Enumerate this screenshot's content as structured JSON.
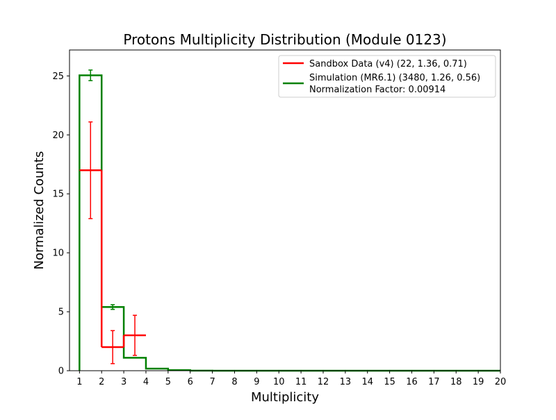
{
  "chart_data": {
    "type": "histogram",
    "title": "Protons Multiplicity Distribution (Module 0123)",
    "xlabel": "Multiplicity",
    "ylabel": "Normalized Counts",
    "xlim": [
      0.55,
      20
    ],
    "ylim": [
      0,
      27.2
    ],
    "xticks": [
      1,
      2,
      3,
      4,
      5,
      6,
      7,
      8,
      9,
      10,
      11,
      12,
      13,
      14,
      15,
      16,
      17,
      18,
      19,
      20
    ],
    "yticks": [
      0,
      5,
      10,
      15,
      20,
      25
    ],
    "grid": false,
    "legend_position": "top-right",
    "legend_extra_text": "Normalization Factor: 0.00914",
    "series": [
      {
        "name": "Sandbox Data (v4) (22, 1.36, 0.71)",
        "color": "#ff0000",
        "style": "crosses",
        "x": [
          1.5,
          2.5,
          3.5
        ],
        "y": [
          17.0,
          2.0,
          3.0
        ],
        "xerr": [
          0.5,
          0.5,
          0.5
        ],
        "yerr": [
          4.1,
          1.4,
          1.7
        ]
      },
      {
        "name": "Simulation (MR6.1) (3480, 1.26, 0.56)",
        "color": "#008000",
        "style": "step",
        "x": [
          1.5,
          2.5,
          3.5,
          4.5,
          5.5,
          6.5,
          7.5,
          8.5,
          9.5,
          10.5,
          11.5,
          12.5,
          13.5,
          14.5,
          15.5,
          16.5,
          17.5,
          18.5,
          19.5
        ],
        "y": [
          25.05,
          5.4,
          1.1,
          0.18,
          0.05,
          0.01,
          0,
          0,
          0,
          0,
          0,
          0,
          0,
          0,
          0,
          0,
          0,
          0,
          0
        ],
        "yerr": [
          0.45,
          0.2,
          0.08,
          0.03,
          0,
          0,
          0,
          0,
          0,
          0,
          0,
          0,
          0,
          0,
          0,
          0,
          0,
          0,
          0
        ]
      }
    ]
  }
}
